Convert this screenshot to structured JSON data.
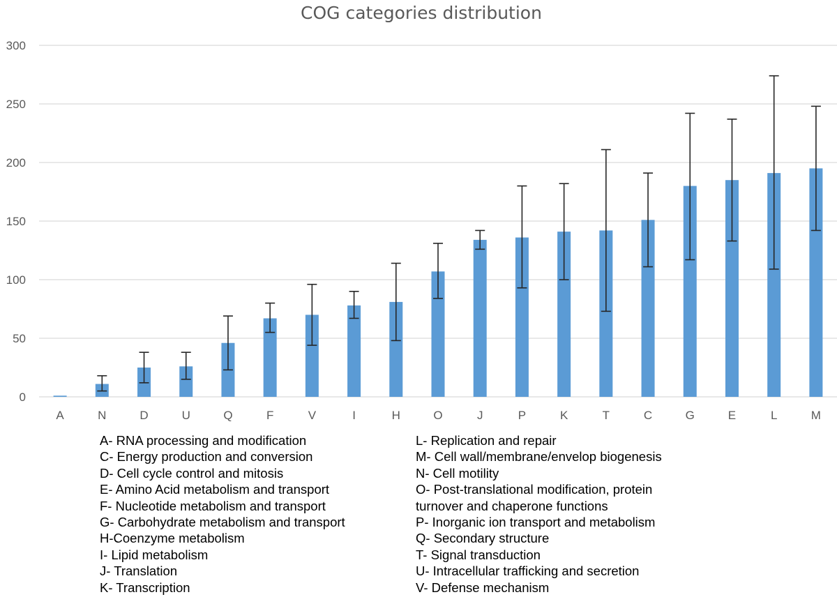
{
  "chart_data": {
    "type": "bar",
    "title": "COG categories distribution",
    "xlabel": "",
    "ylabel": "",
    "ylim": [
      0,
      300
    ],
    "yticks": [
      0,
      50,
      100,
      150,
      200,
      250,
      300
    ],
    "grid": true,
    "bar_color": "#5b9bd5",
    "categories": [
      "A",
      "N",
      "D",
      "U",
      "Q",
      "F",
      "V",
      "I",
      "H",
      "O",
      "J",
      "P",
      "K",
      "T",
      "C",
      "G",
      "E",
      "L",
      "M"
    ],
    "values": [
      1,
      11,
      25,
      26,
      46,
      67,
      70,
      78,
      81,
      107,
      134,
      136,
      141,
      142,
      151,
      180,
      185,
      191,
      195
    ],
    "error_upper": [
      1,
      18,
      38,
      38,
      69,
      80,
      96,
      90,
      114,
      131,
      142,
      180,
      182,
      211,
      191,
      242,
      237,
      274,
      248
    ],
    "error_lower": [
      1,
      5,
      12,
      15,
      23,
      55,
      44,
      67,
      48,
      84,
      126,
      93,
      100,
      73,
      111,
      117,
      133,
      109,
      142
    ]
  },
  "legend": {
    "left": [
      "A- RNA processing and modification",
      "C- Energy production and conversion",
      "D- Cell cycle control and mitosis",
      "E- Amino Acid metabolism and transport",
      "F- Nucleotide metabolism and transport",
      "G- Carbohydrate metabolism and transport",
      "H-Coenzyme metabolism",
      "I- Lipid metabolism",
      "J- Translation",
      "K- Transcription"
    ],
    "right": [
      "L- Replication and repair",
      "M- Cell wall/membrane/envelop biogenesis",
      "N- Cell motility",
      "O- Post-translational modification, protein",
      "turnover and chaperone functions",
      "P- Inorganic ion transport and metabolism",
      "Q- Secondary structure",
      "T- Signal transduction",
      "U- Intracellular trafficking and secretion",
      "V- Defense mechanism"
    ]
  }
}
